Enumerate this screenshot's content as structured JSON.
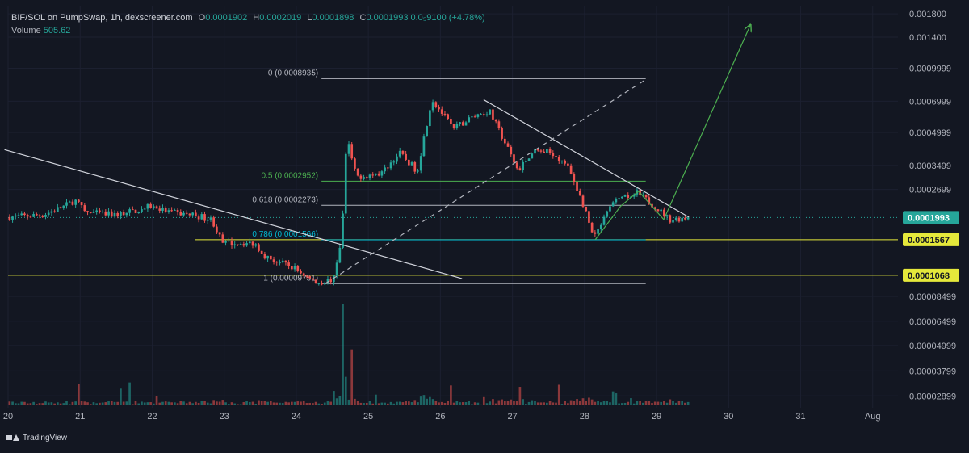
{
  "header": {
    "symbol": "BIF/SOL on PumpSwap, 1h, dexscreener.com",
    "open_label": "O",
    "open": "0.0001902",
    "high_label": "H",
    "high": "0.0002019",
    "low_label": "L",
    "low": "0.0001898",
    "close_label": "C",
    "close": "0.0001993",
    "change": "0.0₅9100 (+4.78%)",
    "volume_label": "Volume",
    "volume": "505.62"
  },
  "brand": "TradingView",
  "colors": {
    "up": "#26a69a",
    "down": "#ef5350",
    "background": "#131722",
    "fib_gray": "#b2b5be",
    "fib_green": "#4caf50",
    "level_yellow": "#e5e83b",
    "trend": "#d1d4dc",
    "projection": "#4caf50"
  },
  "chart_data": {
    "type": "candlestick",
    "y_scale": "log",
    "ylim": [
      2.55e-05,
      0.00195
    ],
    "xlim": [
      20.0,
      32.35
    ],
    "x_ticks": [
      {
        "x": 20,
        "label": "20"
      },
      {
        "x": 21,
        "label": "21"
      },
      {
        "x": 22,
        "label": "22"
      },
      {
        "x": 23,
        "label": "23"
      },
      {
        "x": 24,
        "label": "24"
      },
      {
        "x": 25,
        "label": "25"
      },
      {
        "x": 26,
        "label": "26"
      },
      {
        "x": 27,
        "label": "27"
      },
      {
        "x": 28,
        "label": "28"
      },
      {
        "x": 29,
        "label": "29"
      },
      {
        "x": 30,
        "label": "30"
      },
      {
        "x": 31,
        "label": "31"
      },
      {
        "x": 32,
        "label": "Aug"
      }
    ],
    "y_ticks": [
      {
        "value": 0.0018,
        "label": "0.001800"
      },
      {
        "value": 0.0014,
        "label": "0.001400"
      },
      {
        "value": 0.0009999,
        "label": "0.0009999"
      },
      {
        "value": 0.0006999,
        "label": "0.0006999"
      },
      {
        "value": 0.0004999,
        "label": "0.0004999"
      },
      {
        "value": 0.0003499,
        "label": "0.0003499"
      },
      {
        "value": 0.0002699,
        "label": "0.0002699"
      },
      {
        "value": 8.499e-05,
        "label": "0.00008499"
      },
      {
        "value": 6.499e-05,
        "label": "0.00006499"
      },
      {
        "value": 4.999e-05,
        "label": "0.00004999"
      },
      {
        "value": 3.799e-05,
        "label": "0.00003799"
      },
      {
        "value": 2.899e-05,
        "label": "0.00002899"
      }
    ],
    "price_badges": [
      {
        "value": 0.0001993,
        "label": "0.0001993",
        "bg": "#26a69a",
        "fg": "#ffffff"
      },
      {
        "value": 0.0001567,
        "label": "0.0001567",
        "bg": "#e5e83b",
        "fg": "#131722"
      },
      {
        "value": 0.0001068,
        "label": "0.0001068",
        "bg": "#e5e83b",
        "fg": "#131722"
      }
    ],
    "current_price": 0.0001993,
    "fib_levels": [
      {
        "ratio_label": "0 (0.0008935)",
        "value": 0.0008935,
        "x0": 24.35,
        "x1": 28.85,
        "color": "#b2b5be"
      },
      {
        "ratio_label": "0.5 (0.0002952)",
        "value": 0.0002952,
        "x0": 24.35,
        "x1": 28.85,
        "color": "#4caf50"
      },
      {
        "ratio_label": "0.618 (0.0002273)",
        "value": 0.0002273,
        "x0": 24.35,
        "x1": 28.85,
        "color": "#b2b5be"
      },
      {
        "ratio_label": "0.786 (0.0001566)",
        "value": 0.0001566,
        "x0": 24.35,
        "x1": 28.85,
        "color": "#00bcd4"
      },
      {
        "ratio_label": "1 (0.00009751)",
        "value": 9.751e-05,
        "x0": 24.35,
        "x1": 28.85,
        "color": "#b2b5be"
      }
    ],
    "horizontal_levels": [
      {
        "value": 0.0001567,
        "x0": 22.6,
        "color": "#e5e83b"
      },
      {
        "value": 0.0001068,
        "x0": 20.0,
        "color": "#e5e83b"
      }
    ],
    "trendlines": [
      {
        "x0": 19.95,
        "y0": 0.000415,
        "x1": 26.3,
        "y1": 0.000103,
        "color": "#d1d4dc",
        "dashed": false
      },
      {
        "x0": 26.6,
        "y0": 0.000712,
        "x1": 29.45,
        "y1": 0.0002,
        "color": "#d1d4dc",
        "dashed": false
      },
      {
        "x0": 24.4,
        "y0": 9.75e-05,
        "x1": 28.85,
        "y1": 0.000885,
        "color": "#b2b5be",
        "dashed": true
      },
      {
        "x0": 28.15,
        "y0": 0.000157,
        "x1": 28.5,
        "y1": 0.000225,
        "color": "#4caf50",
        "dashed": false
      },
      {
        "x0": 28.5,
        "y0": 0.000225,
        "x1": 28.75,
        "y1": 0.000265,
        "color": "#4caf50",
        "dashed": false
      },
      {
        "x0": 28.75,
        "y0": 0.000265,
        "x1": 29.1,
        "y1": 0.000195,
        "color": "#4caf50",
        "dashed": false
      },
      {
        "x0": 29.1,
        "y0": 0.000195,
        "x1": 30.3,
        "y1": 0.00159,
        "color": "#4caf50",
        "dashed": false,
        "arrow": true
      }
    ],
    "anchors": [
      {
        "x": 20.0,
        "p": 0.0002
      },
      {
        "x": 20.5,
        "p": 0.000205
      },
      {
        "x": 20.8,
        "p": 0.000225
      },
      {
        "x": 20.95,
        "p": 0.00024
      },
      {
        "x": 21.1,
        "p": 0.00021
      },
      {
        "x": 21.5,
        "p": 0.000205
      },
      {
        "x": 21.8,
        "p": 0.000215
      },
      {
        "x": 22.0,
        "p": 0.000225
      },
      {
        "x": 22.3,
        "p": 0.00021
      },
      {
        "x": 22.6,
        "p": 0.000205
      },
      {
        "x": 22.85,
        "p": 0.000195
      },
      {
        "x": 23.0,
        "p": 0.00015
      },
      {
        "x": 23.2,
        "p": 0.000152
      },
      {
        "x": 23.45,
        "p": 0.00015
      },
      {
        "x": 23.6,
        "p": 0.00013
      },
      {
        "x": 24.0,
        "p": 0.000115
      },
      {
        "x": 24.3,
        "p": 9.8e-05
      },
      {
        "x": 24.55,
        "p": 0.000103
      },
      {
        "x": 24.65,
        "p": 0.00016
      },
      {
        "x": 24.72,
        "p": 0.00047
      },
      {
        "x": 24.85,
        "p": 0.00031
      },
      {
        "x": 25.2,
        "p": 0.00032
      },
      {
        "x": 25.45,
        "p": 0.0004
      },
      {
        "x": 25.7,
        "p": 0.00033
      },
      {
        "x": 25.9,
        "p": 0.00072
      },
      {
        "x": 26.2,
        "p": 0.00052
      },
      {
        "x": 26.5,
        "p": 0.0006
      },
      {
        "x": 26.7,
        "p": 0.00063
      },
      {
        "x": 26.9,
        "p": 0.00046
      },
      {
        "x": 27.1,
        "p": 0.00033
      },
      {
        "x": 27.3,
        "p": 0.00041
      },
      {
        "x": 27.6,
        "p": 0.0004
      },
      {
        "x": 27.8,
        "p": 0.00034
      },
      {
        "x": 28.0,
        "p": 0.00023
      },
      {
        "x": 28.15,
        "p": 0.000158
      },
      {
        "x": 28.4,
        "p": 0.00023
      },
      {
        "x": 28.75,
        "p": 0.00026
      },
      {
        "x": 29.0,
        "p": 0.000225
      },
      {
        "x": 29.2,
        "p": 0.000195
      },
      {
        "x": 29.45,
        "p": 0.0001993
      }
    ]
  }
}
